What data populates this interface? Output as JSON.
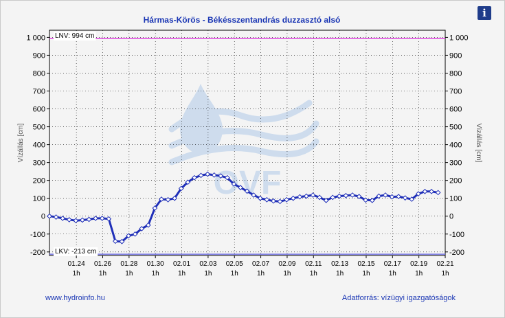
{
  "page": {
    "title": "Hármas-Körös - Békésszentandrás duzzasztó alsó",
    "footer_left": "www.hydroinfo.hu",
    "footer_right": "Adatforrás: vízügyi igazgatóságok",
    "info_icon": "info-icon",
    "info_symbol": "i",
    "watermark_text": "OVF"
  },
  "chart_data": {
    "type": "line",
    "ylabel": "Vízállás [cm]",
    "ylim": [
      -220,
      1040
    ],
    "yticks": [
      -200,
      -100,
      0,
      100,
      200,
      300,
      400,
      500,
      600,
      700,
      800,
      900,
      1000
    ],
    "ytick_labels": [
      "-200",
      "-100",
      "0",
      "100",
      "200",
      "300",
      "400",
      "500",
      "600",
      "700",
      "800",
      "900",
      "1 000"
    ],
    "xlim": [
      "01.22 00:00",
      "02.21 01:00"
    ],
    "xticks": [
      "01.24",
      "01.26",
      "01.28",
      "01.30",
      "02.01",
      "02.03",
      "02.05",
      "02.07",
      "02.09",
      "02.11",
      "02.13",
      "02.15",
      "02.17",
      "02.19",
      "02.21"
    ],
    "xtick_sublabel": "1h",
    "grid": true,
    "reference_lines": [
      {
        "name": "LNV",
        "label": "LNV: 994 cm",
        "value": 994,
        "color": "#e040e0"
      },
      {
        "name": "LKV",
        "label": "LKV: -213 cm",
        "value": -213,
        "color": "#7070e0"
      }
    ],
    "series": [
      {
        "color": "#1f2fb8",
        "x": [
          "01.22 00:00",
          "01.22 12:00",
          "01.23 00:00",
          "01.23 12:00",
          "01.24 00:00",
          "01.24 12:00",
          "01.25 00:00",
          "01.25 12:00",
          "01.26 00:00",
          "01.26 12:00",
          "01.27 00:00",
          "01.27 12:00",
          "01.28 00:00",
          "01.28 12:00",
          "01.29 00:00",
          "01.29 12:00",
          "01.30 00:00",
          "01.30 12:00",
          "01.31 00:00",
          "01.31 12:00",
          "02.01 00:00",
          "02.01 12:00",
          "02.02 00:00",
          "02.02 12:00",
          "02.03 00:00",
          "02.03 12:00",
          "02.04 00:00",
          "02.04 12:00",
          "02.05 00:00",
          "02.05 12:00",
          "02.06 00:00",
          "02.06 12:00",
          "02.07 00:00",
          "02.07 12:00",
          "02.08 00:00",
          "02.08 12:00",
          "02.09 00:00",
          "02.09 12:00",
          "02.10 00:00",
          "02.10 12:00",
          "02.11 00:00",
          "02.11 12:00",
          "02.12 00:00",
          "02.12 12:00",
          "02.13 00:00",
          "02.13 12:00",
          "02.14 00:00",
          "02.14 12:00",
          "02.15 00:00",
          "02.15 12:00",
          "02.16 00:00",
          "02.16 12:00",
          "02.17 00:00",
          "02.17 12:00",
          "02.18 00:00",
          "02.18 12:00",
          "02.19 00:00",
          "02.19 12:00",
          "02.20 00:00",
          "02.20 12:00"
        ],
        "y": [
          0,
          -5,
          -12,
          -20,
          -25,
          -22,
          -18,
          -12,
          -12,
          -15,
          -140,
          -142,
          -110,
          -100,
          -70,
          -50,
          45,
          95,
          92,
          100,
          155,
          190,
          215,
          228,
          235,
          230,
          225,
          215,
          180,
          160,
          140,
          118,
          100,
          92,
          85,
          82,
          92,
          100,
          108,
          112,
          118,
          105,
          88,
          105,
          112,
          115,
          118,
          110,
          90,
          88,
          112,
          118,
          108,
          110,
          102,
          95,
          125,
          138,
          138,
          132
        ]
      }
    ]
  }
}
